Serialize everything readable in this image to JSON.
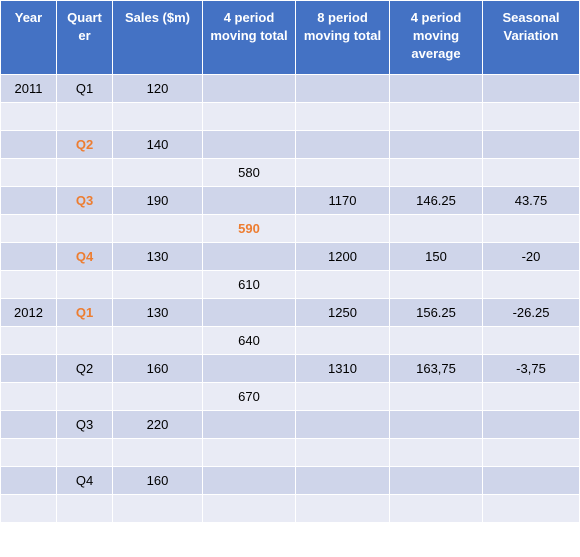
{
  "colors": {
    "header_bg": "#4472c4",
    "band_dark": "#cfd5ea",
    "band_light": "#e9ebf5",
    "highlight": "#ed7d31"
  },
  "headers": [
    [
      "Year"
    ],
    [
      "Quart",
      "er"
    ],
    [
      "Sales ($m)"
    ],
    [
      "4 period",
      "moving total"
    ],
    [
      "8 period",
      "moving total"
    ],
    [
      "4 period",
      "moving",
      "average"
    ],
    [
      "Seasonal",
      "Variation"
    ]
  ],
  "rows": [
    {
      "cells": [
        "2011",
        "Q1",
        "120",
        "",
        "",
        "",
        ""
      ],
      "highlight": []
    },
    {
      "cells": [
        "",
        "",
        "",
        "",
        "",
        "",
        ""
      ],
      "highlight": []
    },
    {
      "cells": [
        "",
        "Q2",
        "140",
        "",
        "",
        "",
        ""
      ],
      "highlight": [
        1
      ]
    },
    {
      "cells": [
        "",
        "",
        "",
        "580",
        "",
        "",
        ""
      ],
      "highlight": []
    },
    {
      "cells": [
        "",
        "Q3",
        "190",
        "",
        "1170",
        "146.25",
        "43.75"
      ],
      "highlight": [
        1
      ]
    },
    {
      "cells": [
        "",
        "",
        "",
        "590",
        "",
        "",
        ""
      ],
      "highlight": [
        3
      ]
    },
    {
      "cells": [
        "",
        "Q4",
        "130",
        "",
        "1200",
        "150",
        "-20"
      ],
      "highlight": [
        1
      ]
    },
    {
      "cells": [
        "",
        "",
        "",
        "610",
        "",
        "",
        ""
      ],
      "highlight": []
    },
    {
      "cells": [
        "2012",
        "Q1",
        "130",
        "",
        "1250",
        "156.25",
        "-26.25"
      ],
      "highlight": [
        1
      ]
    },
    {
      "cells": [
        "",
        "",
        "",
        "640",
        "",
        "",
        ""
      ],
      "highlight": []
    },
    {
      "cells": [
        "",
        "Q2",
        "160",
        "",
        "1310",
        "163,75",
        "-3,75"
      ],
      "highlight": []
    },
    {
      "cells": [
        "",
        "",
        "",
        "670",
        "",
        "",
        ""
      ],
      "highlight": []
    },
    {
      "cells": [
        "",
        "Q3",
        "220",
        "",
        "",
        "",
        ""
      ],
      "highlight": []
    },
    {
      "cells": [
        "",
        "",
        "",
        "",
        "",
        "",
        ""
      ],
      "highlight": []
    },
    {
      "cells": [
        "",
        "Q4",
        "160",
        "",
        "",
        "",
        ""
      ],
      "highlight": []
    },
    {
      "cells": [
        "",
        "",
        "",
        "",
        "",
        "",
        ""
      ],
      "highlight": []
    }
  ]
}
